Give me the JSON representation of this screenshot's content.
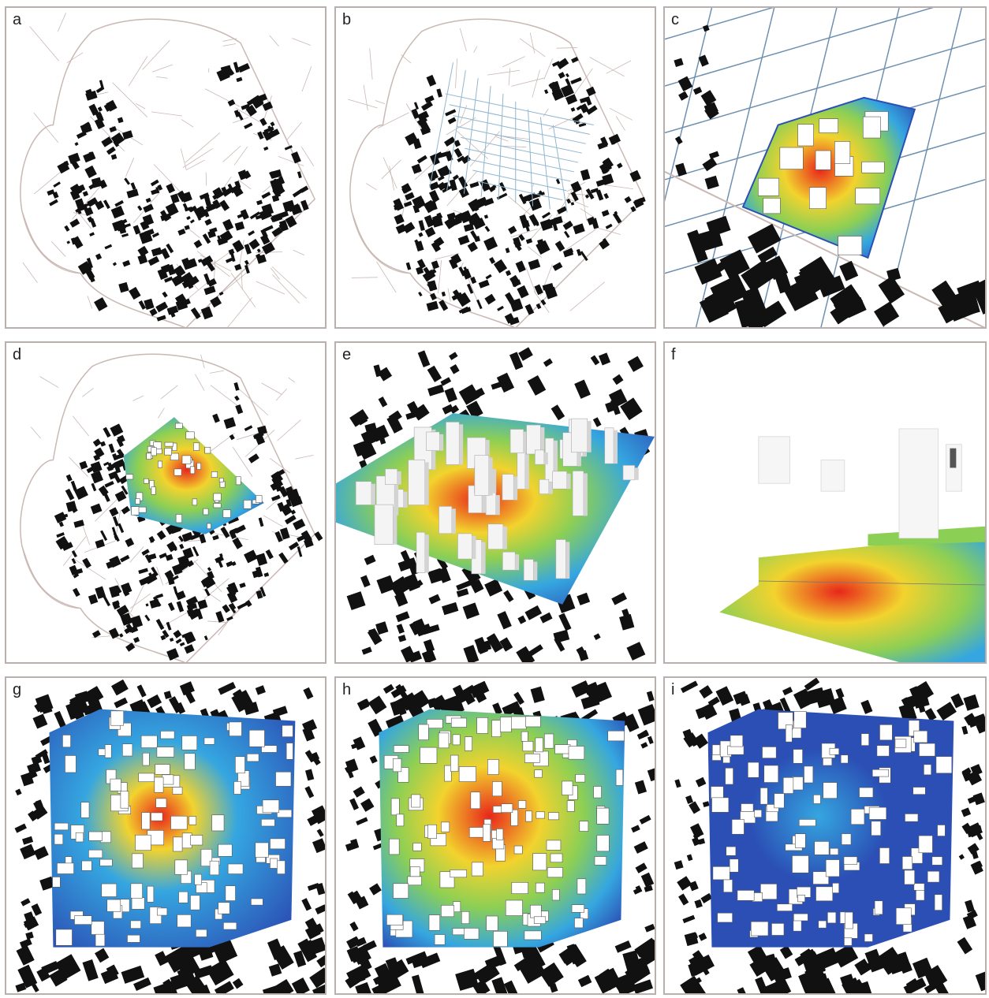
{
  "figure": {
    "panels": [
      {
        "id": "a",
        "label": "a",
        "content": "base-map"
      },
      {
        "id": "b",
        "label": "b",
        "content": "street-network"
      },
      {
        "id": "c",
        "label": "c",
        "content": "heatmap-zoom"
      },
      {
        "id": "d",
        "label": "d",
        "content": "heatmap-overlay"
      },
      {
        "id": "e",
        "label": "e",
        "content": "3d-view"
      },
      {
        "id": "f",
        "label": "f",
        "content": "section-view"
      },
      {
        "id": "g",
        "label": "g",
        "content": "heatmap-plan"
      },
      {
        "id": "h",
        "label": "h",
        "content": "heatmap-plan"
      },
      {
        "id": "i",
        "label": "i",
        "content": "heatmap-plan"
      }
    ],
    "colors": {
      "heat_low": "#2b4fb5",
      "heat_mid_low": "#35a6e0",
      "heat_mid": "#8ccf55",
      "heat_mid_high": "#f2d32e",
      "heat_high": "#e8261b",
      "building": "#111111",
      "road": "#c9b8b3",
      "frame": "#b9afac"
    }
  }
}
